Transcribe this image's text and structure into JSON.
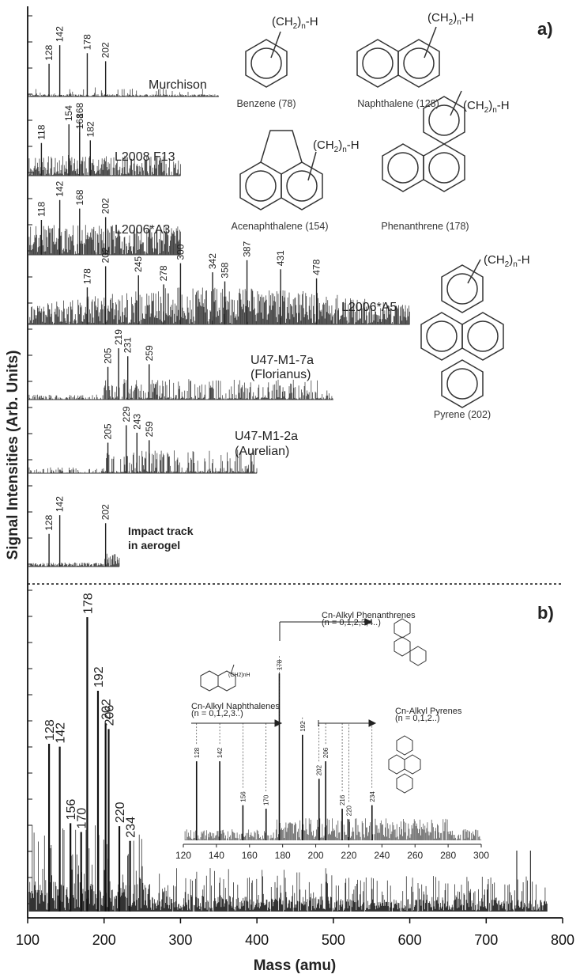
{
  "panel_labels": {
    "a": "a)",
    "b": "b)"
  },
  "axis": {
    "ylabel": "Signal Intensities (Arb. Units)",
    "xlabel": "Mass (amu)",
    "xticks": [
      "100",
      "200",
      "300",
      "400",
      "500",
      "600",
      "700",
      "800"
    ]
  },
  "chart_data": [
    {
      "type": "line",
      "panel": "a",
      "xlim": [
        100,
        800
      ],
      "series": [
        {
          "name": "Murchison",
          "x_max": 350,
          "labeled_peaks": [
            128,
            142,
            178,
            202
          ]
        },
        {
          "name": "L2008 F13",
          "x_max": 300,
          "labeled_peaks": [
            118,
            154,
            168,
            182,
            168
          ]
        },
        {
          "name": "L2006*A3",
          "x_max": 300,
          "labeled_peaks": [
            118,
            142,
            168,
            202
          ]
        },
        {
          "name": "L2006*A5",
          "x_max": 600,
          "labeled_peaks": [
            178,
            202,
            245,
            278,
            300,
            342,
            358,
            387,
            431,
            478
          ]
        },
        {
          "name": "U47-M1-7a",
          "subname": "(Florianus)",
          "x_max": 500,
          "labeled_peaks": [
            205,
            219,
            231,
            259
          ]
        },
        {
          "name": "U47-M1-2a",
          "subname": "(Aurelian)",
          "x_max": 400,
          "labeled_peaks": [
            205,
            229,
            243,
            259
          ]
        },
        {
          "name": "Impact track",
          "subname": "in aerogel",
          "x_max": 220,
          "labeled_peaks": [
            128,
            142,
            202
          ]
        }
      ]
    },
    {
      "type": "line",
      "panel": "b",
      "xlim": [
        100,
        800
      ],
      "labeled_peaks": [
        {
          "x": 128,
          "rel": 0.57
        },
        {
          "x": 142,
          "rel": 0.56
        },
        {
          "x": 156,
          "rel": 0.3
        },
        {
          "x": 170,
          "rel": 0.27
        },
        {
          "x": 178,
          "rel": 1.0
        },
        {
          "x": 192,
          "rel": 0.75
        },
        {
          "x": 202,
          "rel": 0.64
        },
        {
          "x": 206,
          "rel": 0.62
        },
        {
          "x": 220,
          "rel": 0.29
        },
        {
          "x": 234,
          "rel": 0.24
        }
      ]
    },
    {
      "type": "line",
      "panel": "b-inset",
      "xlim": [
        120,
        300
      ],
      "xticks": [
        "120",
        "140",
        "160",
        "180",
        "200",
        "220",
        "240",
        "260",
        "280",
        "300"
      ],
      "labeled_peaks": [
        128,
        142,
        156,
        170,
        178,
        192,
        202,
        206,
        216,
        220,
        234
      ]
    }
  ],
  "molecules": [
    {
      "name": "Benzene (78)",
      "substituent": "(CH2)n-H"
    },
    {
      "name": "Naphthalene (128)",
      "substituent": "(CH2)n-H"
    },
    {
      "name": "Acenaphthalene (154)",
      "substituent": "(CH2)n-H"
    },
    {
      "name": "Phenanthrene (178)",
      "substituent": "(CH2)n-H"
    },
    {
      "name": "Pyrene (202)",
      "substituent": "(CH2)n-H"
    }
  ],
  "inset": {
    "series_labels": [
      {
        "name": "Cn-Alkyl Naphthalenes",
        "n": "(n = 0,1,2,3..)"
      },
      {
        "name": "Cn-Alkyl Phenanthrenes",
        "n": "(n = 0,1,2,3,4..)"
      },
      {
        "name": "Cn-Alkyl Pyrenes",
        "n": "(n = 0,1,2..)"
      }
    ],
    "substituent": "(CH2)nH"
  }
}
